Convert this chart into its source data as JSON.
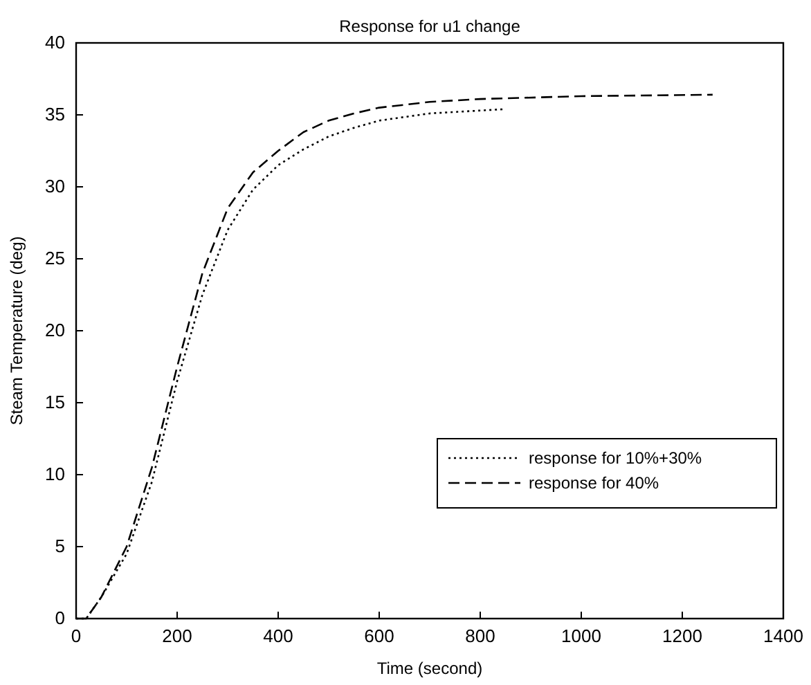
{
  "chart_data": {
    "type": "line",
    "title": "Response for u1 change",
    "xlabel": "Time (second)",
    "ylabel": "Steam Temperature (deg)",
    "xlim": [
      0,
      1400
    ],
    "xticks": [
      0,
      200,
      400,
      600,
      800,
      1000,
      1200,
      1400
    ],
    "ylim": [
      0,
      40
    ],
    "yticks": [
      0,
      5,
      10,
      15,
      20,
      25,
      30,
      35,
      40
    ],
    "grid": false,
    "legend": "right",
    "series": [
      {
        "name": "response for 10%+30%",
        "color": "#000000",
        "line_style": "dotted",
        "x": [
          0,
          20,
          50,
          100,
          150,
          200,
          250,
          300,
          350,
          400,
          450,
          500,
          550,
          600,
          700,
          800,
          850
        ],
        "values": [
          0,
          0,
          1.5,
          4.5,
          9.5,
          16.5,
          22.5,
          27,
          29.8,
          31.5,
          32.6,
          33.5,
          34.1,
          34.6,
          35.1,
          35.3,
          35.4
        ]
      },
      {
        "name": "response for 40%",
        "color": "#000000",
        "line_style": "dashed",
        "x": [
          0,
          20,
          50,
          100,
          150,
          200,
          250,
          300,
          350,
          400,
          450,
          500,
          550,
          600,
          700,
          800,
          1000,
          1260
        ],
        "values": [
          0,
          0,
          1.5,
          5,
          10.5,
          17.5,
          24,
          28.5,
          31,
          32.5,
          33.8,
          34.6,
          35.1,
          35.5,
          35.9,
          36.1,
          36.3,
          36.4
        ]
      }
    ]
  }
}
